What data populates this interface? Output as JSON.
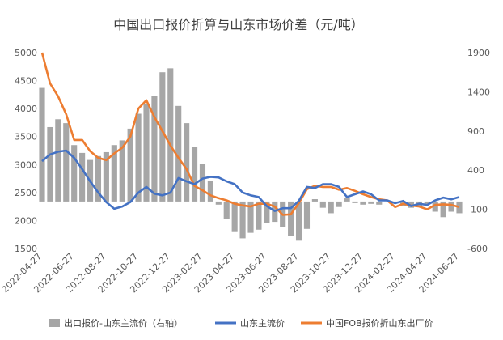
{
  "chart_data": {
    "type": "bar+line",
    "title": "中国出口报价折算与山东市场价差（元/吨）",
    "left_axis": {
      "min": 1500,
      "max": 5000,
      "ticks": [
        1500,
        2000,
        2500,
        3000,
        3500,
        4000,
        4500,
        5000
      ]
    },
    "right_axis": {
      "min": -600,
      "max": 1900,
      "ticks": [
        -600,
        -100,
        400,
        900,
        1400,
        1900
      ]
    },
    "x_tick_labels": [
      "2022-04-27",
      "2022-06-27",
      "2022-08-27",
      "2022-10-27",
      "2022-12-27",
      "2023-02-27",
      "2023-04-27",
      "2023-06-27",
      "2023-08-27",
      "2023-10-27",
      "2023-12-27",
      "2024-02-27",
      "2024-04-27",
      "2024-06-27"
    ],
    "legend": [
      "出口报价-山东主流价（右轴）",
      "山东主流价",
      "中国FOB报价折山东出厂价"
    ],
    "colors": {
      "bar": "#a6a6a6",
      "shandong": "#4472c4",
      "fob": "#ed7d31"
    },
    "series": [
      {
        "name": "出口报价-山东主流价（右轴）",
        "axis": "right",
        "kind": "bar",
        "x": [
          0,
          0.25,
          0.5,
          0.75,
          1,
          1.25,
          1.5,
          1.75,
          2,
          2.25,
          2.5,
          2.75,
          3,
          3.25,
          3.5,
          3.75,
          4,
          4.25,
          4.5,
          4.75,
          5,
          5.25,
          5.5,
          5.75,
          6,
          6.25,
          6.5,
          6.75,
          7,
          7.25,
          7.5,
          7.75,
          8,
          8.25,
          8.5,
          8.75,
          9,
          9.25,
          9.5,
          9.75,
          10,
          10.25,
          10.5,
          10.75,
          11,
          11.25,
          11.5,
          11.75,
          12,
          12.25,
          12.5,
          12.75,
          13
        ],
        "values": [
          1450,
          950,
          1050,
          1000,
          720,
          620,
          530,
          580,
          630,
          720,
          780,
          930,
          1120,
          1250,
          1350,
          1650,
          1700,
          1220,
          1000,
          700,
          480,
          260,
          -40,
          -220,
          -380,
          -470,
          -400,
          -360,
          -270,
          -260,
          -330,
          -440,
          -500,
          -350,
          30,
          -80,
          -150,
          -70,
          40,
          -20,
          -40,
          -30,
          -40,
          -10,
          -10,
          -60,
          -80,
          -60,
          -30,
          -130,
          -200,
          -130,
          -150
        ]
      },
      {
        "name": "山东主流价",
        "axis": "left",
        "kind": "line",
        "x": [
          0,
          0.25,
          0.5,
          0.75,
          1,
          1.25,
          1.5,
          1.75,
          2,
          2.25,
          2.5,
          2.75,
          3,
          3.25,
          3.5,
          3.75,
          4,
          4.25,
          4.5,
          4.75,
          5,
          5.25,
          5.5,
          5.75,
          6,
          6.25,
          6.5,
          6.75,
          7,
          7.25,
          7.5,
          7.75,
          8,
          8.25,
          8.5,
          8.75,
          9,
          9.25,
          9.5,
          9.75,
          10,
          10.25,
          10.5,
          10.75,
          11,
          11.25,
          11.5,
          11.75,
          12,
          12.25,
          12.5,
          12.75,
          13
        ],
        "values": [
          3060,
          3180,
          3230,
          3250,
          3120,
          2920,
          2700,
          2500,
          2330,
          2210,
          2250,
          2330,
          2500,
          2600,
          2480,
          2450,
          2500,
          2760,
          2700,
          2650,
          2750,
          2780,
          2770,
          2700,
          2650,
          2500,
          2450,
          2420,
          2260,
          2170,
          2220,
          2220,
          2350,
          2600,
          2580,
          2650,
          2650,
          2600,
          2420,
          2470,
          2520,
          2470,
          2360,
          2360,
          2310,
          2350,
          2260,
          2300,
          2280,
          2360,
          2410,
          2380,
          2420
        ]
      },
      {
        "name": "中国FOB报价折山东出厂价",
        "axis": "left",
        "kind": "line",
        "x": [
          0,
          0.25,
          0.5,
          0.75,
          1,
          1.25,
          1.5,
          1.75,
          2,
          2.25,
          2.5,
          2.75,
          3,
          3.25,
          3.5,
          3.75,
          4,
          4.25,
          4.5,
          4.75,
          5,
          5.25,
          5.5,
          5.75,
          6,
          6.25,
          6.5,
          6.75,
          7,
          7.25,
          7.5,
          7.75,
          8,
          8.25,
          8.5,
          8.75,
          9,
          9.25,
          9.5,
          9.75,
          10,
          10.25,
          10.5,
          10.75,
          11,
          11.25,
          11.5,
          11.75,
          12,
          12.25,
          12.5,
          12.75,
          13
        ],
        "values": [
          5000,
          4450,
          4220,
          3900,
          3440,
          3440,
          3240,
          3120,
          3080,
          3200,
          3300,
          3500,
          4000,
          4150,
          3850,
          3600,
          3340,
          3120,
          2920,
          2620,
          2540,
          2450,
          2400,
          2360,
          2300,
          2270,
          2250,
          2300,
          2300,
          2250,
          2100,
          2110,
          2310,
          2560,
          2620,
          2600,
          2600,
          2550,
          2580,
          2530,
          2470,
          2420,
          2380,
          2360,
          2240,
          2300,
          2270,
          2250,
          2200,
          2280,
          2290,
          2280,
          2240
        ]
      }
    ]
  }
}
